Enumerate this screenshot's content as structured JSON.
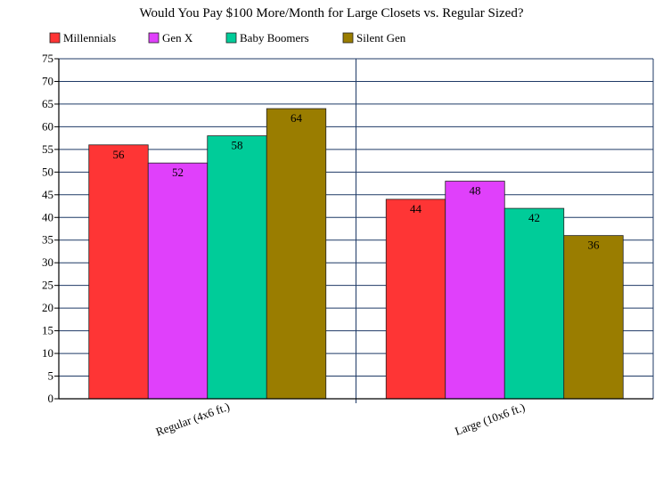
{
  "chart_data": {
    "type": "bar",
    "title": "Would You Pay $100 More/Month for Large Closets vs. Regular Sized?",
    "categories": [
      "Regular (4x6 ft.)",
      "Large (10x6 ft.)"
    ],
    "series": [
      {
        "name": "Millennials",
        "color": "#fe3535",
        "values": [
          56,
          44
        ]
      },
      {
        "name": "Gen X",
        "color": "#e040fb",
        "values": [
          52,
          48
        ]
      },
      {
        "name": "Baby Boomers",
        "color": "#00cc99",
        "values": [
          58,
          42
        ]
      },
      {
        "name": "Silent Gen",
        "color": "#9a7d00",
        "values": [
          64,
          36
        ]
      }
    ],
    "ylim": [
      0,
      75
    ],
    "ytick_step": 5,
    "grid": true,
    "legend_position": "top",
    "xlabel": "",
    "ylabel": ""
  }
}
